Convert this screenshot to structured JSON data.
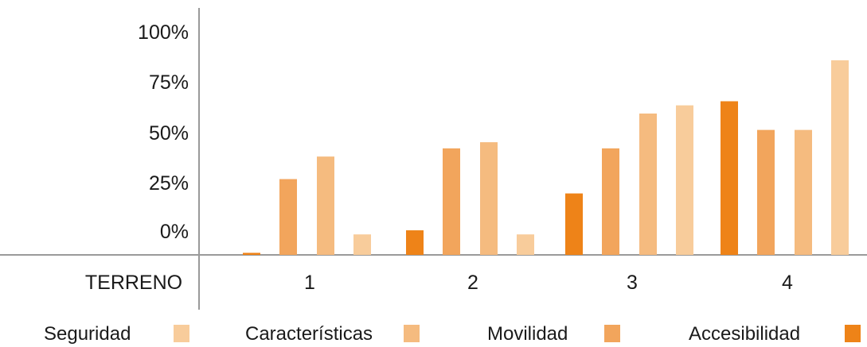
{
  "chart_data": {
    "type": "bar",
    "x_axis_title": "TERRENO",
    "categories": [
      "1",
      "2",
      "3",
      "4"
    ],
    "y_ticks": [
      "0%",
      "25%",
      "50%",
      "75%",
      "100%"
    ],
    "ylim": [
      -12,
      100
    ],
    "grid": false,
    "legend_position": "bottom",
    "series": [
      {
        "name": "Accesibilidad",
        "color": "#ee8318",
        "values": [
          1,
          12,
          30,
          75
        ]
      },
      {
        "name": "Movilidad",
        "color": "#f2a55c",
        "values": [
          37,
          52,
          52,
          61
        ]
      },
      {
        "name": "Características",
        "color": "#f5bb7f",
        "values": [
          48,
          55,
          69,
          61
        ]
      },
      {
        "name": "Seguridad",
        "color": "#f8cc9b",
        "values": [
          10,
          10,
          73,
          95
        ]
      }
    ],
    "legend": [
      "Seguridad",
      "Características",
      "Movilidad",
      "Accesibilidad"
    ]
  }
}
